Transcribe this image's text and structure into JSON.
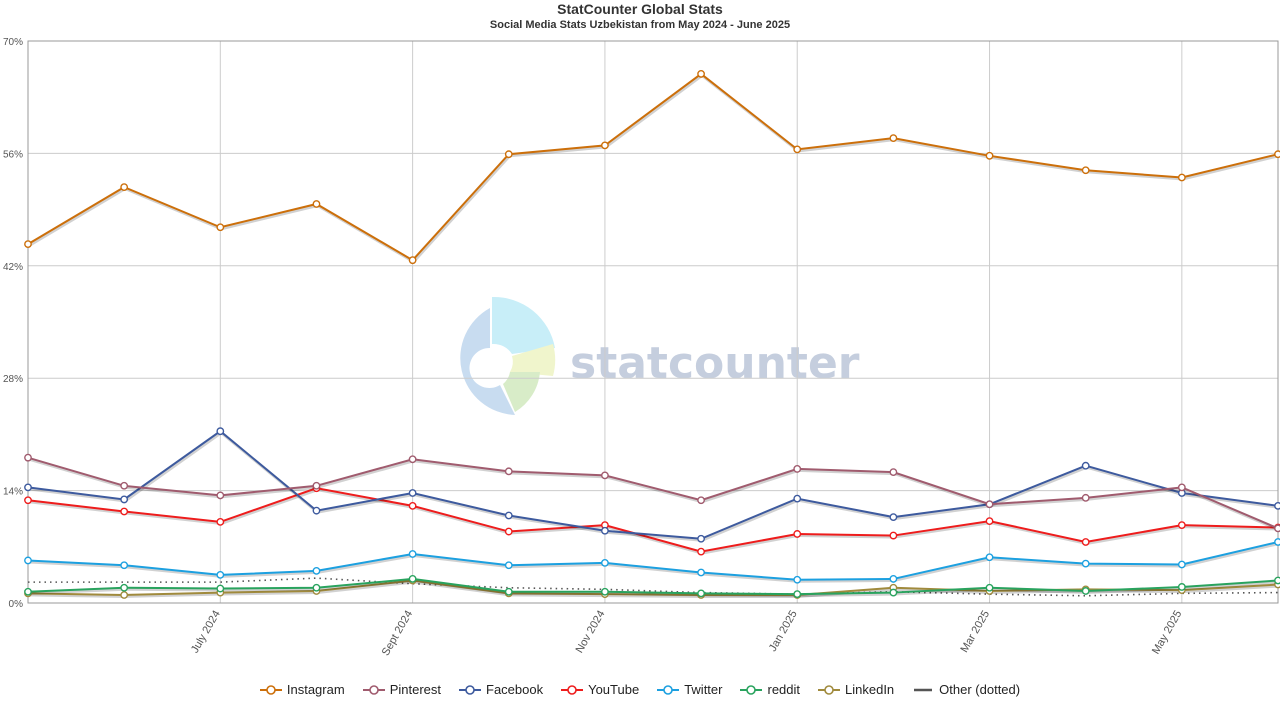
{
  "chart_data": {
    "type": "line",
    "title": "StatCounter Global Stats",
    "subtitle": "Social Media Stats Uzbekistan from May 2024 - June 2025",
    "x": [
      "2024-05",
      "2024-06",
      "2024-07",
      "2024-08",
      "2024-09",
      "2024-10",
      "2024-11",
      "2024-12",
      "2025-01",
      "2025-02",
      "2025-03",
      "2025-04",
      "2025-05",
      "2025-06"
    ],
    "x_tick_labels": [
      {
        "x": "2024-07",
        "label": "July 2024"
      },
      {
        "x": "2024-09",
        "label": "Sept 2024"
      },
      {
        "x": "2024-11",
        "label": "Nov 2024"
      },
      {
        "x": "2025-01",
        "label": "Jan 2025"
      },
      {
        "x": "2025-03",
        "label": "Mar 2025"
      },
      {
        "x": "2025-05",
        "label": "May 2025"
      }
    ],
    "y_ticks": [
      "0%",
      "14%",
      "28%",
      "42%",
      "56%",
      "70%"
    ],
    "ylim": [
      0,
      70
    ],
    "grid": true,
    "legend_position": "bottom",
    "series": [
      {
        "name": "Instagram",
        "color": "#cc6f0a",
        "dotted": false,
        "markers": true,
        "values": [
          44.7,
          51.8,
          46.8,
          49.7,
          42.7,
          55.9,
          57.0,
          65.9,
          56.5,
          57.9,
          55.7,
          53.9,
          53.0,
          55.9
        ]
      },
      {
        "name": "Pinterest",
        "color": "#a05b6e",
        "dotted": false,
        "markers": true,
        "values": [
          18.1,
          14.6,
          13.4,
          14.6,
          17.9,
          16.4,
          15.9,
          12.8,
          16.7,
          16.3,
          12.3,
          13.1,
          14.4,
          9.3
        ]
      },
      {
        "name": "Facebook",
        "color": "#3d5a9e",
        "dotted": false,
        "markers": true,
        "values": [
          14.4,
          12.9,
          21.4,
          11.5,
          13.7,
          10.9,
          9.0,
          8.0,
          13.0,
          10.7,
          12.3,
          17.1,
          13.7,
          12.1
        ]
      },
      {
        "name": "YouTube",
        "color": "#ee1c1c",
        "dotted": false,
        "markers": true,
        "values": [
          12.8,
          11.4,
          10.1,
          14.3,
          12.1,
          8.9,
          9.7,
          6.4,
          8.6,
          8.4,
          10.2,
          7.6,
          9.7,
          9.4
        ]
      },
      {
        "name": "Twitter",
        "color": "#1ca0e0",
        "dotted": false,
        "markers": true,
        "values": [
          5.3,
          4.7,
          3.5,
          4.0,
          6.1,
          4.7,
          5.0,
          3.8,
          2.9,
          3.0,
          5.7,
          4.9,
          4.8,
          7.6
        ]
      },
      {
        "name": "reddit",
        "color": "#29a35e",
        "dotted": false,
        "markers": true,
        "values": [
          1.4,
          1.9,
          1.8,
          1.9,
          3.0,
          1.4,
          1.4,
          1.2,
          1.1,
          1.3,
          1.9,
          1.5,
          2.0,
          2.8
        ]
      },
      {
        "name": "LinkedIn",
        "color": "#a08a3c",
        "dotted": false,
        "markers": true,
        "values": [
          1.2,
          1.0,
          1.3,
          1.5,
          2.8,
          1.2,
          1.1,
          1.0,
          1.0,
          1.9,
          1.5,
          1.7,
          1.6,
          2.3
        ]
      },
      {
        "name": "Other (dotted)",
        "color": "#555555",
        "dotted": true,
        "markers": false,
        "values": [
          2.6,
          2.6,
          2.6,
          3.1,
          2.4,
          1.9,
          1.7,
          1.3,
          1.1,
          1.4,
          1.1,
          0.9,
          1.2,
          1.3
        ]
      }
    ]
  },
  "watermark": {
    "text": "statcounter",
    "text_color": "#c5cede",
    "segment_colors": [
      "#c8dcf0",
      "#c8eef8",
      "#f0f5cc",
      "#d8ecc8"
    ]
  }
}
